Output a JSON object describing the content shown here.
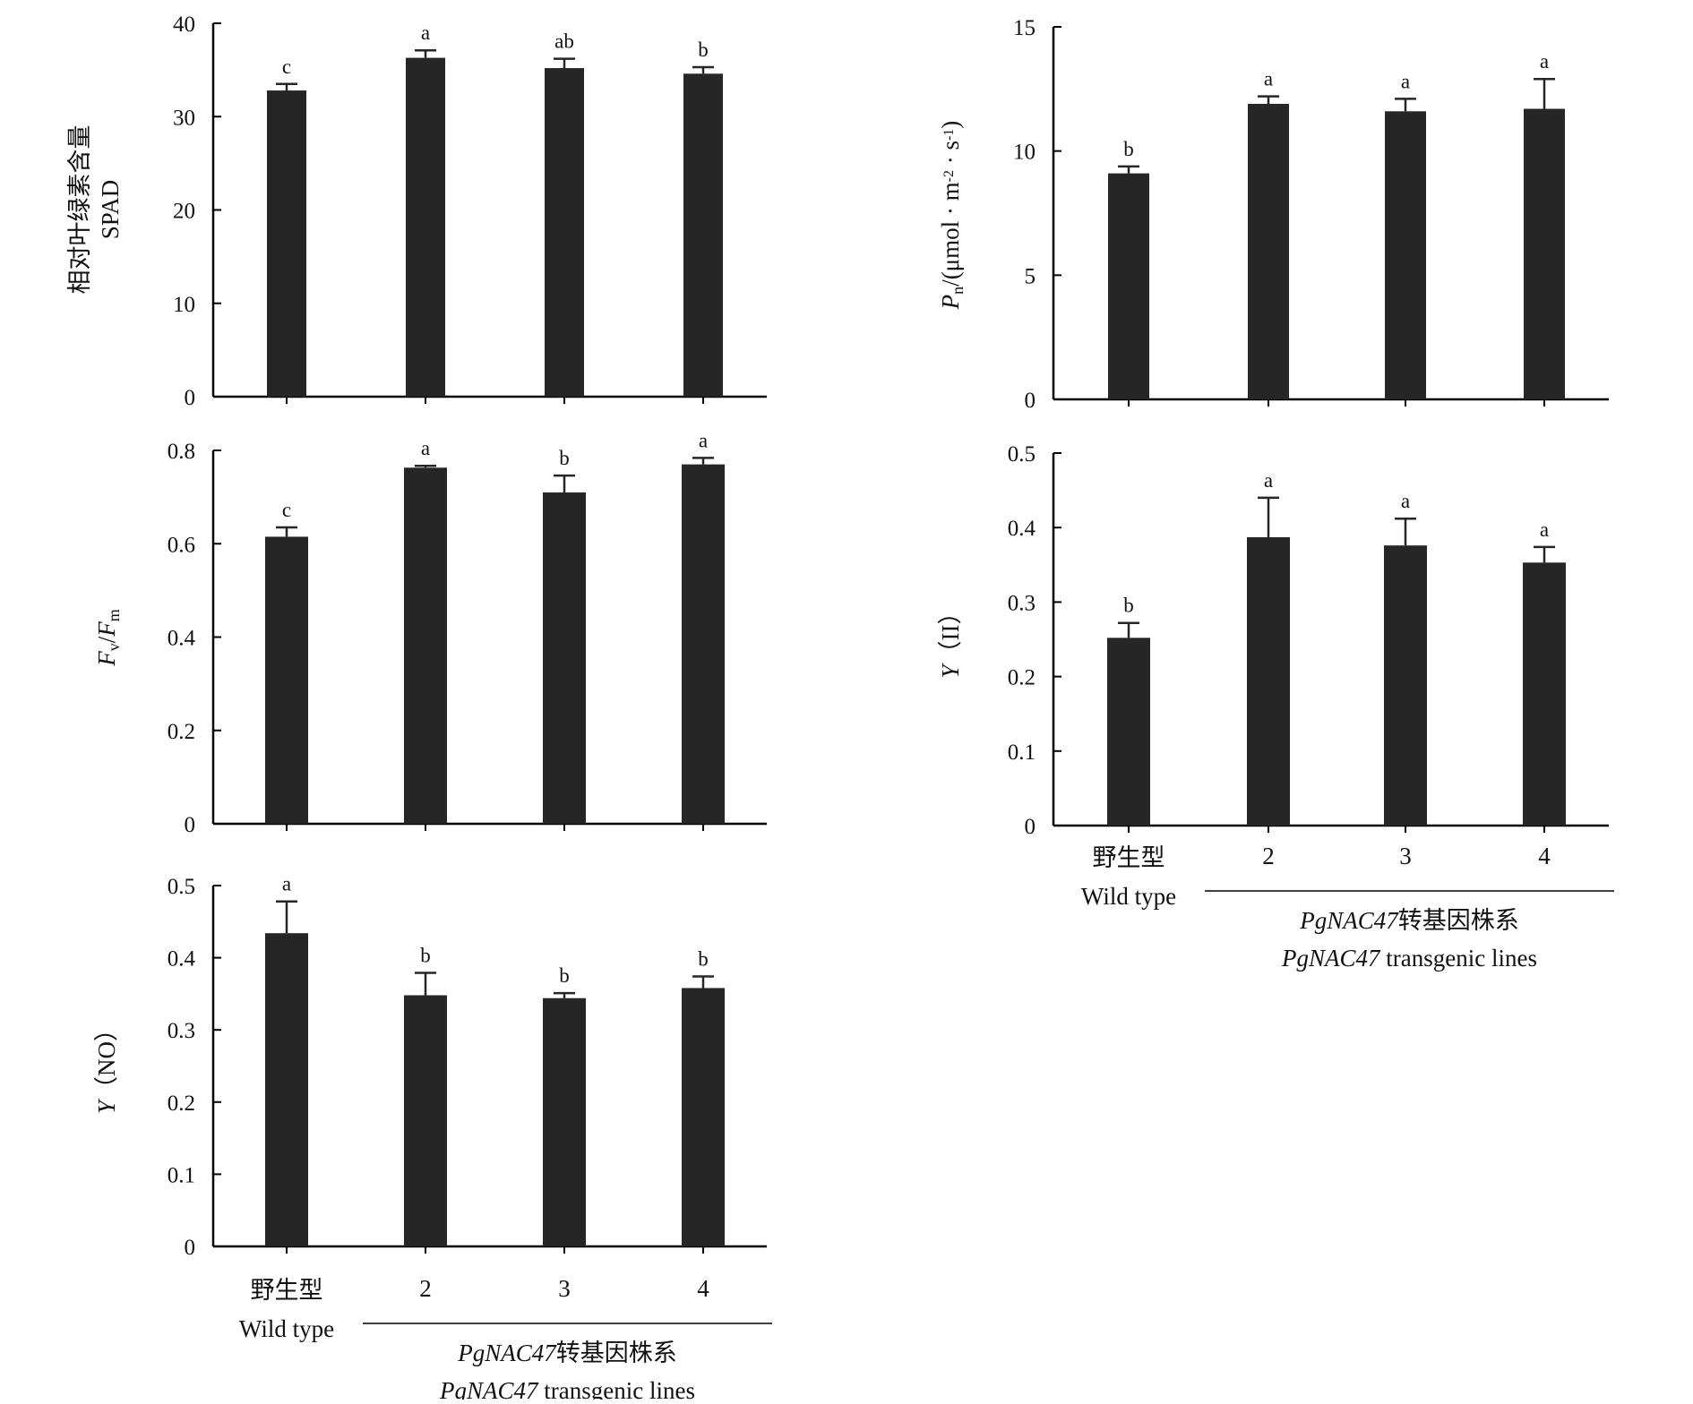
{
  "colors": {
    "bar": "#262626",
    "axis": "#000000",
    "background": "#ffffff"
  },
  "category_labels": [
    {
      "zh": "野生型",
      "en": "Wild type"
    },
    {
      "zh": "",
      "en": "2"
    },
    {
      "zh": "",
      "en": "3"
    },
    {
      "zh": "",
      "en": "4"
    }
  ],
  "group_label": {
    "line1_gene": "PgNAC47",
    "line1_rest": "转基因株系",
    "line2_gene": "PgNAC47",
    "line2_rest": " transgenic lines"
  },
  "chart_data": [
    {
      "type": "bar",
      "ylabel_zh": "相对叶绿素含量",
      "ylabel_en": "SPAD",
      "ylim": [
        0,
        40
      ],
      "yticks": [
        "0",
        "10",
        "20",
        "30",
        "40"
      ],
      "categories": [
        "野生型 Wild type",
        "2",
        "3",
        "4"
      ],
      "values": [
        32.8,
        36.3,
        35.2,
        34.6
      ],
      "errors": [
        0.7,
        0.8,
        1.0,
        0.7
      ],
      "significance": [
        "c",
        "a",
        "ab",
        "b"
      ]
    },
    {
      "type": "bar",
      "ylabel_parts": [
        {
          "text": "F",
          "style": "italic"
        },
        {
          "text": "v",
          "style": "sub"
        },
        {
          "text": "/",
          "style": "normal"
        },
        {
          "text": "F",
          "style": "italic"
        },
        {
          "text": "m",
          "style": "sub"
        }
      ],
      "ylim": [
        0,
        0.8
      ],
      "yticks": [
        "0",
        "0.2",
        "0.4",
        "0.6",
        "0.8"
      ],
      "categories": [
        "野生型 Wild type",
        "2",
        "3",
        "4"
      ],
      "values": [
        0.615,
        0.763,
        0.71,
        0.77
      ],
      "errors": [
        0.02,
        0.004,
        0.036,
        0.014
      ],
      "significance": [
        "c",
        "a",
        "b",
        "a"
      ]
    },
    {
      "type": "bar",
      "ylabel_parts": [
        {
          "text": "Y",
          "style": "italic"
        },
        {
          "text": "（NO）",
          "style": "normal"
        }
      ],
      "ylim": [
        0,
        0.5
      ],
      "yticks": [
        "0",
        "0.1",
        "0.2",
        "0.3",
        "0.4",
        "0.5"
      ],
      "categories": [
        "野生型 Wild type",
        "2",
        "3",
        "4"
      ],
      "values": [
        0.434,
        0.348,
        0.344,
        0.358
      ],
      "errors": [
        0.044,
        0.031,
        0.007,
        0.016
      ],
      "significance": [
        "a",
        "b",
        "b",
        "b"
      ]
    },
    {
      "type": "bar",
      "ylabel_parts": [
        {
          "text": "P",
          "style": "italic"
        },
        {
          "text": "n",
          "style": "sub"
        },
        {
          "text": "/(μmol · m",
          "style": "normal"
        },
        {
          "text": "-2",
          "style": "sup"
        },
        {
          "text": " · s",
          "style": "normal"
        },
        {
          "text": "-1",
          "style": "sup"
        },
        {
          "text": ")",
          "style": "normal"
        }
      ],
      "ylim": [
        0,
        15
      ],
      "yticks": [
        "0",
        "5",
        "10",
        "15"
      ],
      "categories": [
        "野生型 Wild type",
        "2",
        "3",
        "4"
      ],
      "values": [
        9.1,
        11.9,
        11.6,
        11.7
      ],
      "errors": [
        0.28,
        0.3,
        0.5,
        1.2
      ],
      "significance": [
        "b",
        "a",
        "a",
        "a"
      ]
    },
    {
      "type": "bar",
      "ylabel_parts": [
        {
          "text": "Y",
          "style": "italic"
        },
        {
          "text": "（II）",
          "style": "normal"
        }
      ],
      "ylim": [
        0,
        0.5
      ],
      "yticks": [
        "0",
        "0.1",
        "0.2",
        "0.3",
        "0.4",
        "0.5"
      ],
      "categories": [
        "野生型 Wild type",
        "2",
        "3",
        "4"
      ],
      "values": [
        0.252,
        0.387,
        0.376,
        0.353
      ],
      "errors": [
        0.02,
        0.053,
        0.036,
        0.021
      ],
      "significance": [
        "b",
        "a",
        "a",
        "a"
      ]
    }
  ]
}
